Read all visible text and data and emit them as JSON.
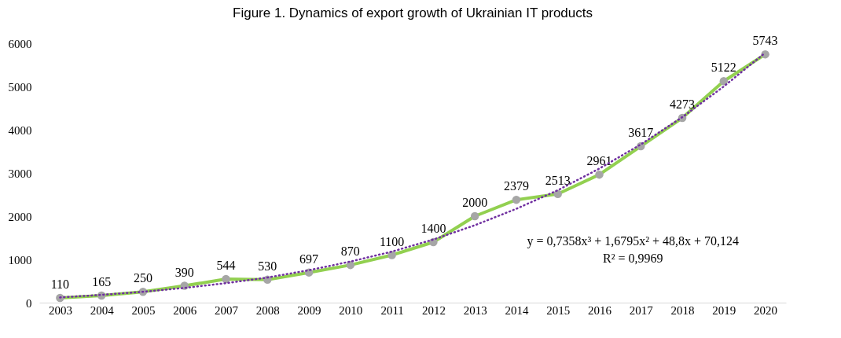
{
  "chart_data": {
    "type": "line",
    "title": "Figure 1. Dynamics of export growth of Ukrainian IT products",
    "categories": [
      "2003",
      "2004",
      "2005",
      "2006",
      "2007",
      "2008",
      "2009",
      "2010",
      "2011",
      "2012",
      "2013",
      "2014",
      "2015",
      "2016",
      "2017",
      "2018",
      "2019",
      "2020"
    ],
    "series": [
      {
        "color": "#92d050",
        "values": [
          110,
          165,
          250,
          390,
          544,
          530,
          697,
          870,
          1100,
          1400,
          2000,
          2379,
          2513,
          2961,
          3617,
          4273,
          5122,
          5743
        ],
        "value_labels": [
          "110",
          "165",
          "250",
          "390",
          "544",
          "530",
          "697",
          "870",
          "1100",
          "1400",
          "2000",
          "2379",
          "2513",
          "2961",
          "3617",
          "4273",
          "5122",
          "5743"
        ]
      },
      {
        "type": "line",
        "color": "#7030a0",
        "line_style": "dotted",
        "marker": "none",
        "values": [
          120,
          180,
          250,
          340,
          450,
          580,
          750,
          950,
          1180,
          1460,
          1790,
          2170,
          2600,
          3100,
          3660,
          4290,
          5000,
          5780
        ]
      }
    ],
    "ylim": [
      0,
      6000
    ],
    "yticks": [
      0,
      1000,
      2000,
      3000,
      4000,
      5000,
      6000
    ],
    "marker": "circle",
    "line_style": "solid",
    "grid": false,
    "annotations": [
      "y = 0,7358x³ + 1,6795x² + 48,8x + 70,124",
      "R² = 0,9969"
    ]
  }
}
